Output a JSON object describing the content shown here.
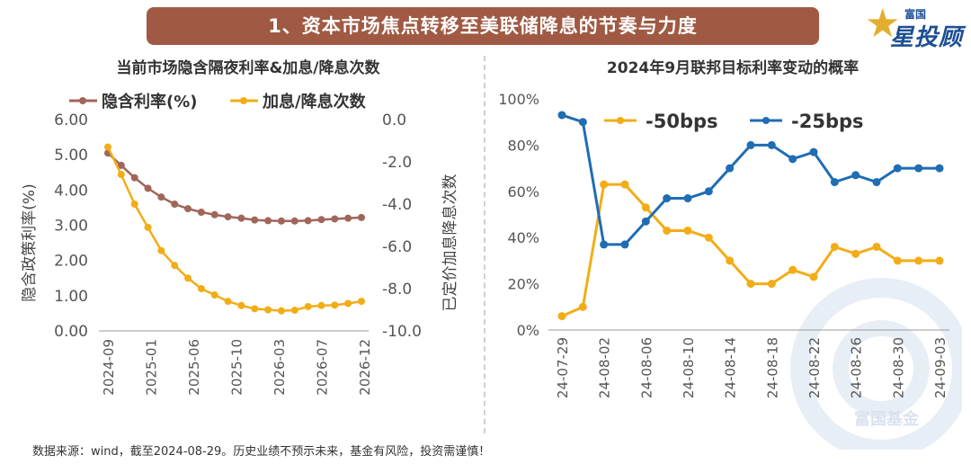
{
  "banner": {
    "title": "1、资本市场焦点转移至美联储降息的节奏与力度"
  },
  "logo": {
    "small": "富国",
    "big": "星投顾"
  },
  "watermark": {
    "text": "富国基金"
  },
  "footer": {
    "text": "数据来源：wind，截至2024-08-29。历史业绩不预示未来，基金有风险，投资需谨慎！"
  },
  "colors": {
    "banner": "#a05a43",
    "brown": "#a0665a",
    "gold": "#f2ad16",
    "blue": "#1f6db3"
  },
  "chart_data": [
    {
      "type": "line",
      "title": "当前市场隐含隔夜利率&加息/降息次数",
      "legend_placement": "top",
      "ylabel": "隐含政策利率(%)",
      "y2label": "已定价加息降息次数",
      "ylim": [
        0,
        6
      ],
      "y2lim": [
        -10,
        0
      ],
      "yticks": [
        "6.00",
        "5.00",
        "4.00",
        "3.00",
        "2.00",
        "1.00",
        "0.00"
      ],
      "y2ticks": [
        "0.0",
        "-2.0",
        "-4.0",
        "-6.0",
        "-8.0",
        "-10.0"
      ],
      "xticks": [
        "2024-09",
        "2025-01",
        "2025-06",
        "2025-10",
        "2026-03",
        "2026-07",
        "2026-12"
      ],
      "series": [
        {
          "name": "隐含利率(%)",
          "axis": "left",
          "values": [
            5.05,
            4.7,
            4.35,
            4.05,
            3.8,
            3.6,
            3.47,
            3.37,
            3.3,
            3.24,
            3.2,
            3.15,
            3.13,
            3.12,
            3.12,
            3.13,
            3.16,
            3.18,
            3.2,
            3.22
          ]
        },
        {
          "name": "加息/降息次数",
          "axis": "right",
          "values": [
            -1.3,
            -2.6,
            -4.0,
            -5.1,
            -6.2,
            -6.9,
            -7.5,
            -8.0,
            -8.3,
            -8.6,
            -8.8,
            -8.95,
            -9.0,
            -9.05,
            -9.02,
            -8.85,
            -8.8,
            -8.78,
            -8.7,
            -8.6
          ]
        }
      ]
    },
    {
      "type": "line",
      "title": "2024年9月联邦目标利率变动的概率",
      "legend_placement": "top",
      "ylim": [
        0,
        100
      ],
      "yticks": [
        "100%",
        "80%",
        "60%",
        "40%",
        "20%",
        "0%"
      ],
      "xticks": [
        "24-07-29",
        "24-08-02",
        "24-08-06",
        "24-08-10",
        "24-08-14",
        "24-08-18",
        "24-08-22",
        "24-08-26",
        "24-08-30",
        "24-09-03"
      ],
      "series": [
        {
          "name": "-50bps",
          "values": [
            6,
            10,
            63,
            63,
            53,
            43,
            43,
            40,
            30,
            20,
            20,
            26,
            23,
            36,
            33,
            36,
            30,
            30,
            30
          ]
        },
        {
          "name": "-25bps",
          "values": [
            93,
            90,
            37,
            37,
            47,
            57,
            57,
            60,
            70,
            80,
            80,
            74,
            77,
            64,
            67,
            64,
            70,
            70,
            70
          ]
        }
      ]
    }
  ]
}
